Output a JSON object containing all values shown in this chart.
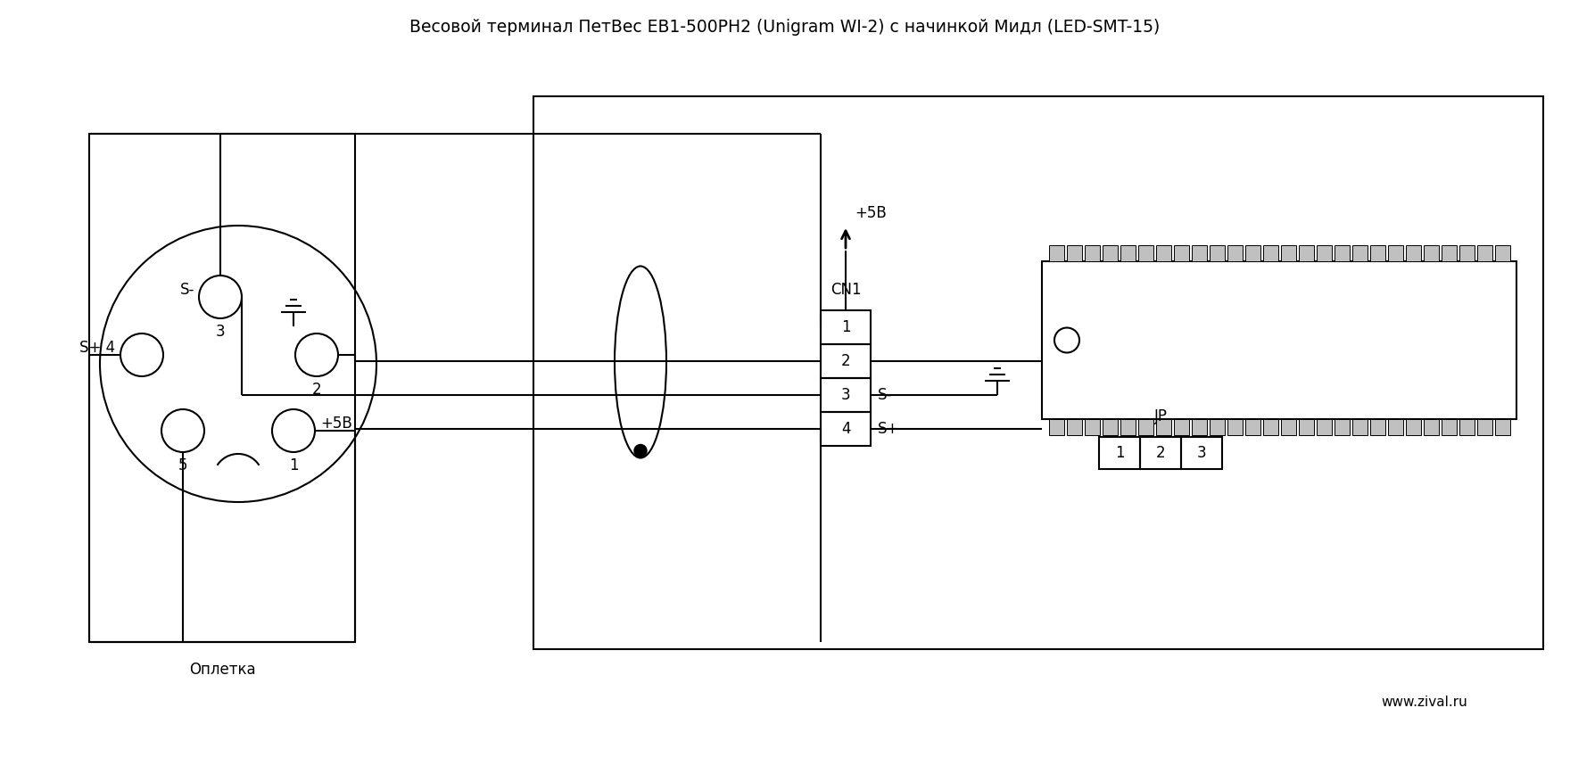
{
  "title": "Весовой терминал ПетВес ЕВ1-500РН2 (Unigram WI-2) с начинкой Мидл (LED-SMT-15)",
  "bg_color": "#ffffff",
  "lc": "#000000",
  "lw": 1.5,
  "title_fontsize": 13.5,
  "fs": 12,
  "watermark": "www.zival.ru",
  "cn1_labels": [
    "1",
    "2",
    "3",
    "4"
  ],
  "cn1_sminus": "S-",
  "cn1_splus": "S+",
  "jp_label": "JP",
  "jp_pins": [
    "1",
    "2",
    "3"
  ],
  "plus5v": "+5B",
  "cn1_hdr": "CN1",
  "oplatka": "Оплетка",
  "pin3_label": "S-",
  "pin3_num": "3",
  "pin4_label": "S+ 4",
  "pin2_num": "2",
  "pin1_label": "+5B",
  "pin1_num": "1",
  "pin5_num": "5"
}
